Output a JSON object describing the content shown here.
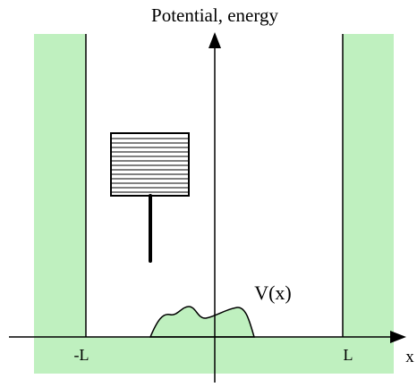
{
  "labels": {
    "y_axis": "Potential, energy",
    "x_axis": "x",
    "left_wall": "-L",
    "right_wall": "L",
    "potential": "V(x)"
  },
  "colors": {
    "wall_fill": "#bff0bf",
    "bump_fill": "#bff0bf",
    "line": "#000000",
    "background": "#ffffff"
  }
}
